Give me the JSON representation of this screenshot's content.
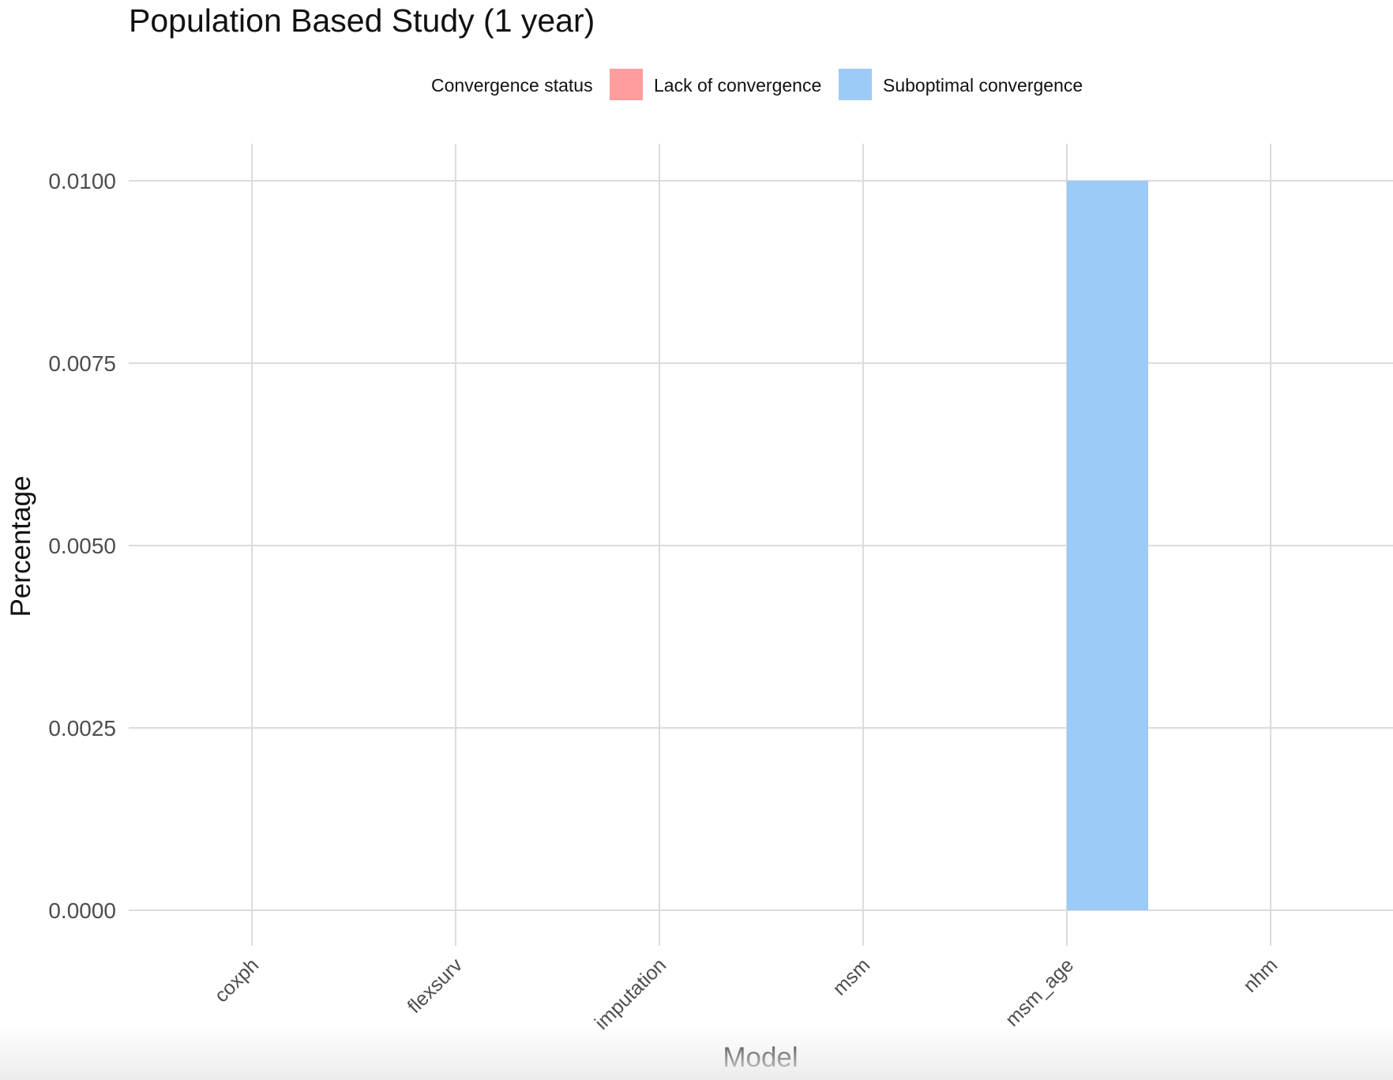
{
  "chart_data": {
    "type": "bar",
    "title": "Population Based Study (1 year)",
    "xlabel": "Model",
    "ylabel": "Percentage",
    "categories": [
      "coxph",
      "flexsurv",
      "imputation",
      "msm",
      "msm_age",
      "nhm"
    ],
    "legend": {
      "title": "Convergence status",
      "position": "top",
      "entries": [
        {
          "label": "Lack of convergence",
          "color": "#ff9d9d"
        },
        {
          "label": "Suboptimal convergence",
          "color": "#9dcbf7"
        }
      ]
    },
    "series": [
      {
        "name": "Lack of convergence",
        "color": "#ff9d9d",
        "values": [
          0,
          0,
          0,
          0,
          0,
          0
        ]
      },
      {
        "name": "Suboptimal convergence",
        "color": "#9dcbf7",
        "values": [
          0,
          0,
          0,
          0,
          0.01,
          0
        ]
      }
    ],
    "ylim": [
      0,
      0.01
    ],
    "yticks": [
      "0.0000",
      "0.0025",
      "0.0050",
      "0.0075",
      "0.0100"
    ],
    "grid": true
  }
}
